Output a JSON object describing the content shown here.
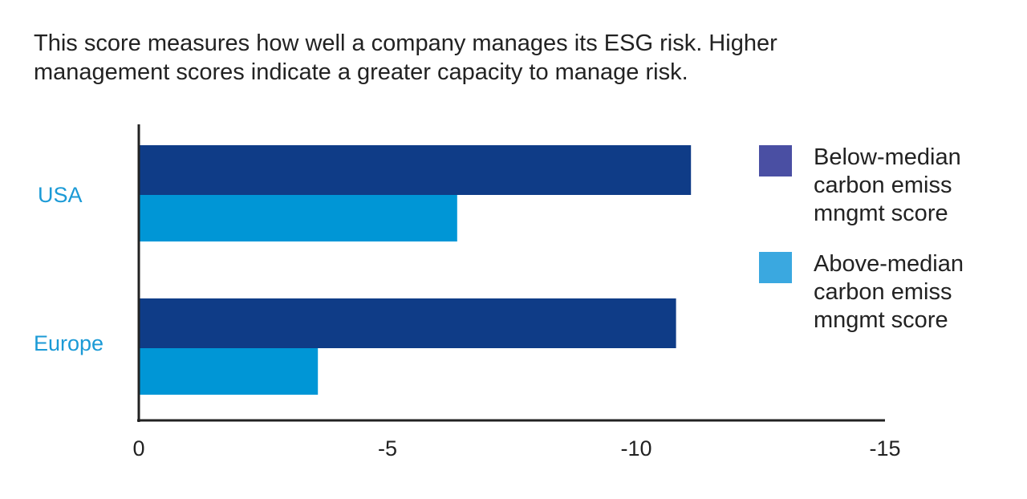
{
  "description": "This score measures how well a company manages its ESG risk. Higher management scores indicate a greater capacity to manage risk.",
  "chart_data": {
    "type": "bar",
    "orientation": "horizontal",
    "categories": [
      "USA",
      "Europe"
    ],
    "series": [
      {
        "name": "Below-median carbon emiss mngmt score",
        "legend_lines": [
          "Below-median",
          "carbon emiss",
          "mngmt score"
        ],
        "values": [
          -11.1,
          -10.8
        ],
        "color": "#0f3c87",
        "legend_color": "#4a4fa3"
      },
      {
        "name": "Above-median carbon emiss mngmt score",
        "legend_lines": [
          "Above-median",
          "carbon emiss",
          "mngmt score"
        ],
        "values": [
          -6.4,
          -3.6
        ],
        "color": "#0096d6",
        "legend_color": "#3aa8e0"
      }
    ],
    "xticks": [
      0,
      -5,
      -10,
      -15
    ],
    "xtick_labels": [
      "0",
      "-5",
      "-10",
      "-15"
    ],
    "xlim": [
      0,
      -15
    ],
    "title": "",
    "xlabel": "",
    "ylabel": "",
    "grid": false,
    "legend_position": "right"
  }
}
